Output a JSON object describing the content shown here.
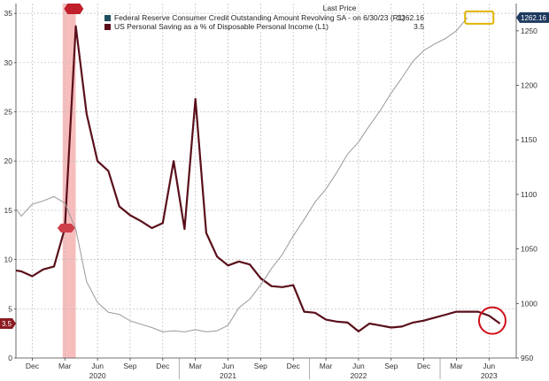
{
  "legend": {
    "header": "Last Price",
    "items": [
      {
        "name": "Federal Reserve Consumer Credit Outstanding Amount Revolving SA -  on 6/30/23 (R1)",
        "value": "1262.16",
        "color": "#1f4e5f"
      },
      {
        "name": "US Personal Saving as a % of Disposable Personal Income  (L1)",
        "value": "3.5",
        "color": "#5a0f1a"
      }
    ]
  },
  "chart_data": {
    "type": "line",
    "left_axis": {
      "min": 0,
      "max": 36,
      "ticks": [
        0,
        5,
        10,
        15,
        20,
        25,
        30,
        35
      ]
    },
    "right_axis": {
      "min": 950,
      "max": 1275,
      "ticks": [
        950,
        1000,
        1050,
        1100,
        1150,
        1200,
        1250
      ]
    },
    "x_tick_labels": [
      {
        "label": "Dec",
        "month": 0
      },
      {
        "label": "Mar",
        "month": 3
      },
      {
        "label": "Jun",
        "month": 6
      },
      {
        "label": "Sep",
        "month": 9
      },
      {
        "label": "Dec",
        "month": 12
      },
      {
        "label": "Mar",
        "month": 15
      },
      {
        "label": "Jun",
        "month": 18
      },
      {
        "label": "Sep",
        "month": 21
      },
      {
        "label": "Dec",
        "month": 24
      },
      {
        "label": "Mar",
        "month": 27
      },
      {
        "label": "Jun",
        "month": 30
      },
      {
        "label": "Sep",
        "month": 33
      },
      {
        "label": "Dec",
        "month": 36
      },
      {
        "label": "Mar",
        "month": 39
      },
      {
        "label": "Jun",
        "month": 42
      }
    ],
    "year_labels": [
      {
        "label": "2020",
        "month": 6
      },
      {
        "label": "2021",
        "month": 18
      },
      {
        "label": "2022",
        "month": 30
      },
      {
        "label": "2023",
        "month": 42
      }
    ],
    "series": [
      {
        "name": "US Personal Saving as a % of Disposable Personal Income",
        "axis": "left",
        "color": "#5a0f1a",
        "points": [
          [
            -1.5,
            8.9
          ],
          [
            -1,
            8.8
          ],
          [
            0,
            8.3
          ],
          [
            1,
            9.0
          ],
          [
            2,
            9.3
          ],
          [
            3,
            13.2
          ],
          [
            4,
            33.7
          ],
          [
            5,
            24.8
          ],
          [
            6,
            20.0
          ],
          [
            7,
            19.0
          ],
          [
            8,
            15.4
          ],
          [
            9,
            14.5
          ],
          [
            10,
            13.9
          ],
          [
            11,
            13.2
          ],
          [
            12,
            13.7
          ],
          [
            13,
            20.0
          ],
          [
            14,
            13.1
          ],
          [
            15,
            26.3
          ],
          [
            16,
            12.7
          ],
          [
            17,
            10.3
          ],
          [
            18,
            9.4
          ],
          [
            19,
            9.8
          ],
          [
            20,
            9.5
          ],
          [
            21,
            8.1
          ],
          [
            22,
            7.3
          ],
          [
            23,
            7.2
          ],
          [
            24,
            7.4
          ],
          [
            25,
            4.7
          ],
          [
            26,
            4.6
          ],
          [
            27,
            3.9
          ],
          [
            28,
            3.7
          ],
          [
            29,
            3.6
          ],
          [
            30,
            2.7
          ],
          [
            31,
            3.5
          ],
          [
            32,
            3.3
          ],
          [
            33,
            3.1
          ],
          [
            34,
            3.2
          ],
          [
            35,
            3.6
          ],
          [
            36,
            3.8
          ],
          [
            37,
            4.1
          ],
          [
            38,
            4.4
          ],
          [
            39,
            4.7
          ],
          [
            40,
            4.7
          ],
          [
            41,
            4.7
          ],
          [
            42,
            4.3
          ],
          [
            43,
            3.5
          ]
        ]
      },
      {
        "name": "Federal Reserve Consumer Credit Outstanding Amount Revolving SA",
        "axis": "right",
        "color": "#9a9a9a",
        "points": [
          [
            -1.5,
            1087
          ],
          [
            -1,
            1080
          ],
          [
            0,
            1091
          ],
          [
            1,
            1094
          ],
          [
            2,
            1098
          ],
          [
            3,
            1092
          ],
          [
            4,
            1068
          ],
          [
            5,
            1020
          ],
          [
            6,
            1001
          ],
          [
            7,
            992
          ],
          [
            8,
            990
          ],
          [
            9,
            984
          ],
          [
            10,
            981
          ],
          [
            11,
            978
          ],
          [
            12,
            974
          ],
          [
            13,
            975
          ],
          [
            14,
            974
          ],
          [
            15,
            976
          ],
          [
            16,
            974
          ],
          [
            17,
            975
          ],
          [
            18,
            980
          ],
          [
            19,
            996
          ],
          [
            20,
            1004
          ],
          [
            21,
            1017
          ],
          [
            22,
            1032
          ],
          [
            23,
            1045
          ],
          [
            24,
            1062
          ],
          [
            25,
            1077
          ],
          [
            26,
            1093
          ],
          [
            27,
            1105
          ],
          [
            28,
            1120
          ],
          [
            29,
            1137
          ],
          [
            30,
            1148
          ],
          [
            31,
            1163
          ],
          [
            32,
            1177
          ],
          [
            33,
            1193
          ],
          [
            34,
            1207
          ],
          [
            35,
            1222
          ],
          [
            36,
            1232
          ],
          [
            37,
            1238
          ],
          [
            38,
            1243
          ],
          [
            39,
            1250
          ],
          [
            40,
            1262
          ]
        ]
      }
    ],
    "shaded_region": {
      "from_month": 2.8,
      "to_month": 4.0,
      "color": "#f4a7a7"
    },
    "markers": {
      "left_axis_last": {
        "label": "3.5",
        "value": 3.5
      },
      "right_axis_last": {
        "label": "1262.16",
        "value": 1262.16
      },
      "left_axis_tag": {
        "value": 13.2
      },
      "top_tag": {
        "month": 3.9
      }
    },
    "annotations": {
      "circle": {
        "month": 42.3,
        "value": 3.8
      },
      "box": {
        "month": 41.1,
        "value": 1262.16
      }
    },
    "x_range": [
      -1.5,
      44.5
    ],
    "grid": true
  }
}
